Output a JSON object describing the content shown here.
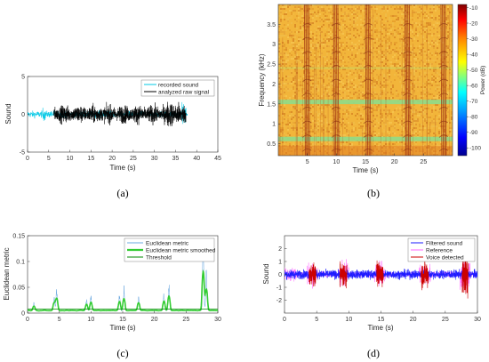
{
  "chart_data": [
    {
      "panel": "(a)",
      "type": "line",
      "xlabel": "Time (s)",
      "ylabel": "Sound",
      "xlim": [
        0,
        45
      ],
      "ylim": [
        -5,
        5
      ],
      "xticks": [
        "0",
        "5",
        "10",
        "15",
        "20",
        "25",
        "30",
        "35",
        "40",
        "45"
      ],
      "yticks": [
        "5",
        "0",
        "-5"
      ],
      "legend_position": "top-right",
      "grid": false,
      "series": [
        {
          "name": "recorded sound",
          "color": "#00c8e6",
          "span": [
            0,
            37.8
          ],
          "amplitude": 0.45,
          "bursts": [
            [
              3.5,
              4.2,
              0.9
            ],
            [
              36.5,
              37.5,
              1.5
            ]
          ]
        },
        {
          "name": "analyzed raw signal",
          "color": "#000000",
          "span": [
            6.2,
            37.5
          ],
          "amplitude": 2.0
        }
      ]
    },
    {
      "panel": "(b)",
      "type": "heatmap",
      "xlabel": "Time (s)",
      "ylabel": "Frequency (kHz)",
      "xlim": [
        0,
        30
      ],
      "ylim": [
        0.2,
        4.0
      ],
      "xticks": [
        "5",
        "10",
        "15",
        "20",
        "25"
      ],
      "yticks": [
        "3.5",
        "3",
        "2.5",
        "2",
        "1.5",
        "1",
        "0.5"
      ],
      "colorbar": {
        "label": "Power (dB)",
        "range": [
          -105,
          -8
        ],
        "ticks": [
          "-10",
          "-20",
          "-30",
          "-40",
          "-50",
          "-60",
          "-70",
          "-80",
          "-90",
          "-100"
        ]
      },
      "green_bands_khz": [
        1.55,
        0.62,
        2.4
      ],
      "voice_events_s": [
        4.5,
        9.5,
        15.0,
        21.8,
        28.0
      ]
    },
    {
      "panel": "(c)",
      "type": "line",
      "xlabel": "Time (s)",
      "ylabel": "Euclidean metric",
      "xlim": [
        0,
        30
      ],
      "ylim": [
        0,
        0.15
      ],
      "xticks": [
        "0",
        "5",
        "10",
        "15",
        "20",
        "25",
        "30"
      ],
      "yticks": [
        "0.15",
        "0.1",
        "0.05",
        "0"
      ],
      "legend_position": "top-right",
      "grid": false,
      "series": [
        {
          "name": "Euclidean metric",
          "color": "#6aa8e0"
        },
        {
          "name": "Euclidean metric smoothed",
          "color": "#33cc33"
        },
        {
          "name": "Threshold",
          "color": "#008800",
          "value": 0.008
        }
      ],
      "peaks": [
        [
          1.0,
          0.015
        ],
        [
          4.2,
          0.025
        ],
        [
          4.6,
          0.04
        ],
        [
          9.3,
          0.02
        ],
        [
          10.0,
          0.03
        ],
        [
          14.5,
          0.03
        ],
        [
          15.2,
          0.04
        ],
        [
          17.5,
          0.025
        ],
        [
          21.5,
          0.03
        ],
        [
          22.3,
          0.045
        ],
        [
          27.7,
          0.12
        ],
        [
          28.2,
          0.07
        ]
      ]
    },
    {
      "panel": "(d)",
      "type": "line",
      "xlabel": "Time (s)",
      "ylabel": "Sound",
      "xlim": [
        0,
        30
      ],
      "ylim": [
        -3,
        3
      ],
      "xticks": [
        "0",
        "5",
        "10",
        "15",
        "20",
        "25",
        "30"
      ],
      "yticks": [
        "2",
        "1",
        "0",
        "-1",
        "-2"
      ],
      "legend_position": "top-right",
      "grid": false,
      "series": [
        {
          "name": "Filtered sound",
          "color": "#1a1aff",
          "span": [
            0,
            30
          ],
          "amplitude": 0.35
        },
        {
          "name": "Reference",
          "color": "#ff66ff",
          "span": [
            0,
            2.0
          ],
          "amplitude": 0.6
        },
        {
          "name": "Voice detected",
          "color": "#cc0000"
        }
      ],
      "voice_segments_s": [
        [
          3.8,
          4.9,
          1.2
        ],
        [
          8.6,
          9.7,
          1.3
        ],
        [
          14.3,
          15.4,
          1.3
        ],
        [
          21.2,
          22.4,
          1.4
        ],
        [
          27.6,
          28.6,
          2.5
        ]
      ]
    }
  ],
  "labels": {
    "a": "(a)",
    "b": "(b)",
    "c": "(c)",
    "d": "(d)"
  }
}
